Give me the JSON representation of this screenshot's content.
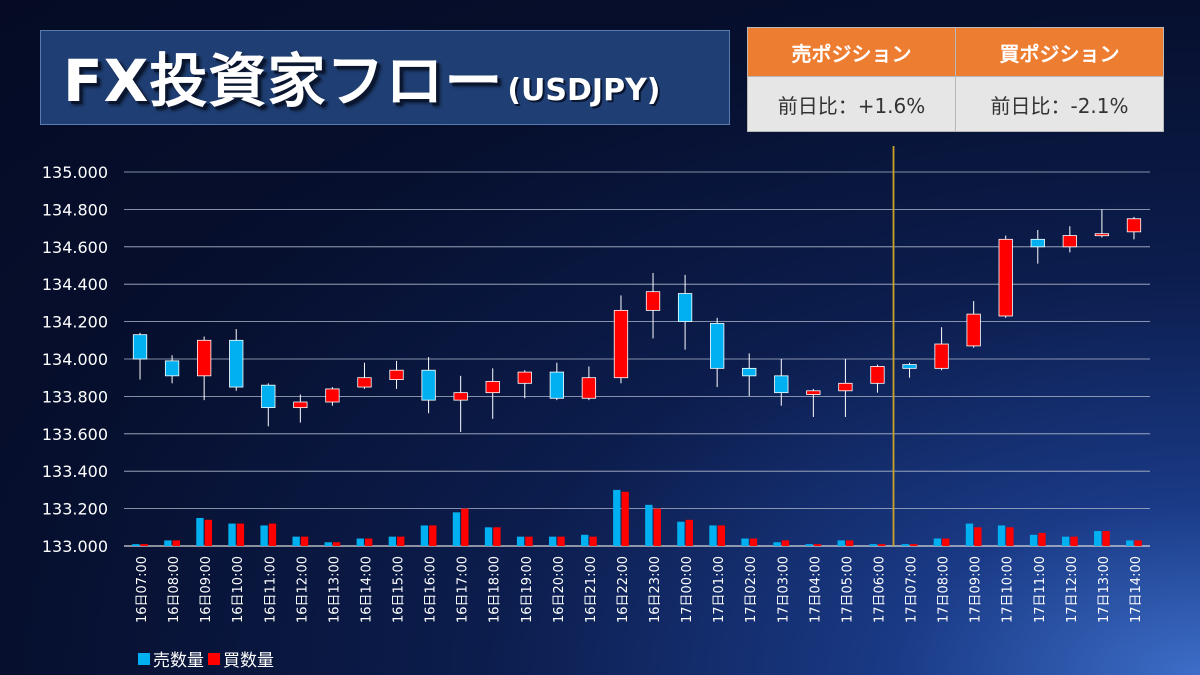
{
  "header": {
    "title": "FX投資家フロー",
    "subtitle": "(USDJPY)"
  },
  "positions": {
    "sell_label": "売ポジション",
    "buy_label": "買ポジション",
    "sell_change": "前日比：+1.6%",
    "buy_change": "前日比：-2.1%"
  },
  "colors": {
    "up": "#ff0000",
    "down": "#00b0f0",
    "sell": "#00b0f0",
    "buy": "#ff0000",
    "marker": "#c9a227",
    "header_orange": "#ed7d31"
  },
  "chart_data": {
    "type": "candlestick",
    "ylim": [
      133.0,
      135.0
    ],
    "y_ticks": [
      "135.000",
      "134.800",
      "134.600",
      "134.400",
      "134.200",
      "134.000",
      "133.800",
      "133.600",
      "133.400",
      "133.200",
      "133.000"
    ],
    "grid": true,
    "marker_after_category": "17日06:00",
    "categories": [
      "16日07:00",
      "16日08:00",
      "16日09:00",
      "16日10:00",
      "16日11:00",
      "16日12:00",
      "16日13:00",
      "16日14:00",
      "16日15:00",
      "16日16:00",
      "16日17:00",
      "16日18:00",
      "16日19:00",
      "16日20:00",
      "16日21:00",
      "16日22:00",
      "16日23:00",
      "17日00:00",
      "17日01:00",
      "17日02:00",
      "17日03:00",
      "17日04:00",
      "17日05:00",
      "17日06:00",
      "17日07:00",
      "17日08:00",
      "17日09:00",
      "17日10:00",
      "17日11:00",
      "17日12:00",
      "17日13:00",
      "17日14:00"
    ],
    "ohlc": [
      [
        134.13,
        134.14,
        133.89,
        134.0
      ],
      [
        133.99,
        134.02,
        133.87,
        133.91
      ],
      [
        133.91,
        134.12,
        133.78,
        134.1
      ],
      [
        134.1,
        134.16,
        133.83,
        133.85
      ],
      [
        133.86,
        133.87,
        133.64,
        133.74
      ],
      [
        133.74,
        133.81,
        133.66,
        133.77
      ],
      [
        133.77,
        133.85,
        133.75,
        133.84
      ],
      [
        133.85,
        133.98,
        133.84,
        133.9
      ],
      [
        133.89,
        133.99,
        133.84,
        133.94
      ],
      [
        133.94,
        134.01,
        133.71,
        133.78
      ],
      [
        133.78,
        133.91,
        133.61,
        133.82
      ],
      [
        133.82,
        133.95,
        133.68,
        133.88
      ],
      [
        133.87,
        133.94,
        133.79,
        133.93
      ],
      [
        133.93,
        133.98,
        133.78,
        133.79
      ],
      [
        133.79,
        133.96,
        133.78,
        133.9
      ],
      [
        133.9,
        134.34,
        133.87,
        134.26
      ],
      [
        134.26,
        134.46,
        134.11,
        134.36
      ],
      [
        134.35,
        134.45,
        134.05,
        134.2
      ],
      [
        134.19,
        134.22,
        133.85,
        133.95
      ],
      [
        133.95,
        134.03,
        133.8,
        133.91
      ],
      [
        133.91,
        134.0,
        133.75,
        133.82
      ],
      [
        133.81,
        133.84,
        133.69,
        133.83
      ],
      [
        133.83,
        134.0,
        133.69,
        133.87
      ],
      [
        133.87,
        133.97,
        133.82,
        133.96
      ],
      [
        133.97,
        133.98,
        133.9,
        133.95
      ],
      [
        133.95,
        134.17,
        133.94,
        134.08
      ],
      [
        134.07,
        134.31,
        134.06,
        134.24
      ],
      [
        134.23,
        134.66,
        134.22,
        134.64
      ],
      [
        134.64,
        134.69,
        134.51,
        134.6
      ],
      [
        134.6,
        134.71,
        134.57,
        134.66
      ],
      [
        134.66,
        134.8,
        134.65,
        134.67
      ],
      [
        134.68,
        134.76,
        134.64,
        134.75
      ]
    ],
    "series": [
      {
        "name": "売数量",
        "values": [
          0.01,
          0.03,
          0.15,
          0.12,
          0.11,
          0.05,
          0.02,
          0.04,
          0.05,
          0.11,
          0.18,
          0.1,
          0.05,
          0.05,
          0.06,
          0.3,
          0.22,
          0.13,
          0.11,
          0.04,
          0.02,
          0.01,
          0.03,
          0.01,
          0.01,
          0.04,
          0.12,
          0.11,
          0.06,
          0.05,
          0.08,
          0.03
        ]
      },
      {
        "name": "買数量",
        "values": [
          0.01,
          0.03,
          0.14,
          0.12,
          0.12,
          0.05,
          0.02,
          0.04,
          0.05,
          0.11,
          0.2,
          0.1,
          0.05,
          0.05,
          0.05,
          0.29,
          0.2,
          0.14,
          0.11,
          0.04,
          0.03,
          0.01,
          0.03,
          0.01,
          0.01,
          0.04,
          0.1,
          0.1,
          0.07,
          0.05,
          0.08,
          0.03
        ]
      }
    ]
  }
}
